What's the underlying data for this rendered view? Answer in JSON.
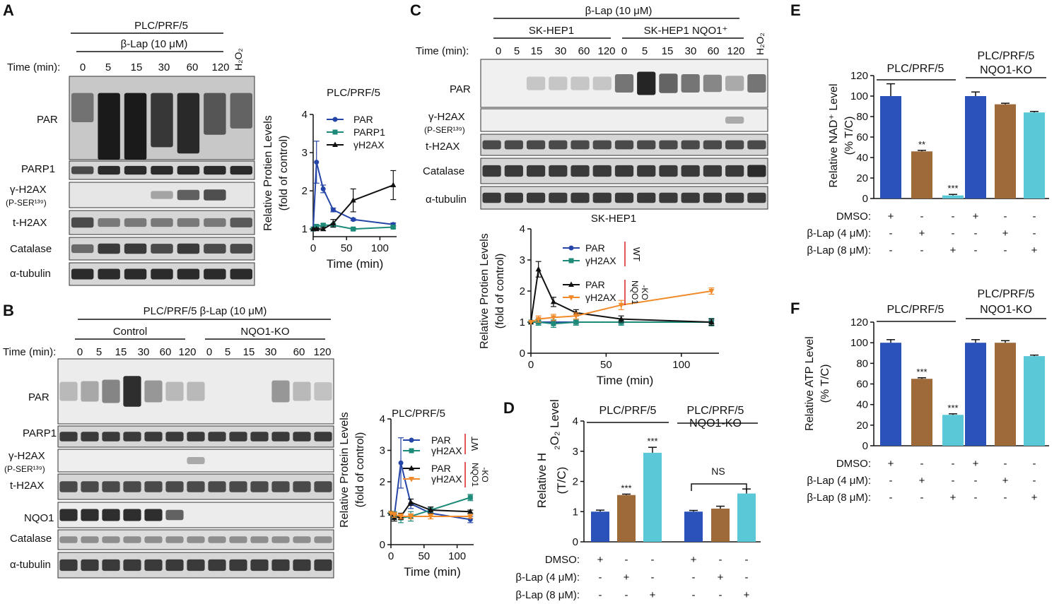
{
  "panels": {
    "A": {
      "letter": "A",
      "cell_line": "PLC/PRF/5",
      "treatment": "β-Lap (10 μM)",
      "h2o2": "H₂O₂",
      "time_label": "Time (min):",
      "times": [
        "0",
        "5",
        "15",
        "30",
        "60",
        "120"
      ],
      "blots": [
        "PAR",
        "PARP1",
        "γ-H2AX",
        "(P-SER¹³⁹)",
        "t-H2AX",
        "Catalase",
        "α-tubulin"
      ]
    },
    "B": {
      "letter": "B",
      "treatment": "PLC/PRF/5 β-Lap (10 μM)",
      "group_control": "Control",
      "group_ko": "NQO1-KO",
      "time_label": "Time (min):",
      "times": [
        "0",
        "5",
        "15",
        "30",
        "60",
        "120",
        "0",
        "5",
        "15",
        "30",
        "60",
        "120"
      ],
      "blots": [
        "PAR",
        "PARP1",
        "γ-H2AX",
        "(P-SER¹³⁹)",
        "t-H2AX",
        "NQO1",
        "Catalase",
        "α-tubulin"
      ]
    },
    "C": {
      "letter": "C",
      "treatment": "β-Lap (10 μM)",
      "group_wt": "SK-HEP1",
      "group_nqo1": "SK-HEP1 NQO1⁺",
      "h2o2": "H₂O₂",
      "time_label": "Time (min):",
      "times": [
        "0",
        "5",
        "15",
        "30",
        "60",
        "120",
        "0",
        "5",
        "15",
        "30",
        "60",
        "120"
      ],
      "blots": [
        "PAR",
        "γ-H2AX",
        "(P-SER¹³⁹)",
        "t-H2AX",
        "Catalase",
        "α-tubulin"
      ]
    },
    "D": {
      "letter": "D"
    },
    "E": {
      "letter": "E"
    },
    "F": {
      "letter": "F"
    }
  },
  "chart_data": [
    {
      "id": "A-line",
      "type": "line",
      "title": "PLC/PRF/5",
      "xlabel": "Time (min)",
      "ylabel": "Relative Protien Levels (fold of control)",
      "xlim": [
        0,
        125
      ],
      "ylim": [
        0.8,
        4
      ],
      "xticks": [
        "0",
        "50",
        "100"
      ],
      "yticks": [
        "1",
        "2",
        "3",
        "4"
      ],
      "legend": "top-right",
      "series": [
        {
          "name": "PAR",
          "color": "#2546a8",
          "marker": "circle",
          "x": [
            0,
            5,
            15,
            30,
            60,
            120
          ],
          "y": [
            1.0,
            2.75,
            2.05,
            1.5,
            1.25,
            1.12
          ],
          "err": [
            0,
            0.55,
            0.1,
            0.05,
            0.03,
            0.04
          ]
        },
        {
          "name": "PARP1",
          "color": "#1e8a7a",
          "marker": "square",
          "x": [
            0,
            5,
            15,
            30,
            60,
            120
          ],
          "y": [
            1.0,
            1.07,
            1.1,
            1.1,
            1.0,
            1.05
          ],
          "err": [
            0,
            0.04,
            0.04,
            0.03,
            0.03,
            0.03
          ]
        },
        {
          "name": "γH2AX",
          "color": "#111111",
          "marker": "triangle",
          "x": [
            0,
            5,
            15,
            30,
            60,
            120
          ],
          "y": [
            1.0,
            1.0,
            1.0,
            1.15,
            1.75,
            2.15
          ],
          "err": [
            0,
            0.03,
            0.04,
            0.1,
            0.3,
            0.38
          ]
        }
      ]
    },
    {
      "id": "B-line",
      "type": "line",
      "title": "PLC/PRF/5",
      "xlabel": "Time (min)",
      "ylabel": "Relative Protein Levels (fold of control)",
      "xlim": [
        0,
        125
      ],
      "ylim": [
        0,
        4
      ],
      "xticks": [
        "0",
        "50",
        "100"
      ],
      "yticks": [
        "0",
        "1",
        "2",
        "3",
        "4"
      ],
      "legend": "top-right",
      "groups": [
        {
          "label": "WT",
          "color": "#d62020"
        },
        {
          "label": "NQO1 -KO",
          "color": "#d62020"
        }
      ],
      "series": [
        {
          "name": "PAR",
          "group": "WT",
          "color": "#2546a8",
          "marker": "circle",
          "x": [
            0,
            5,
            15,
            30,
            60,
            120
          ],
          "y": [
            1.0,
            0.9,
            2.6,
            1.3,
            1.0,
            0.8
          ],
          "err": [
            0,
            0.1,
            0.8,
            0.15,
            0.1,
            0.1
          ]
        },
        {
          "name": "γH2AX",
          "group": "WT",
          "color": "#1e8a7a",
          "marker": "square",
          "x": [
            0,
            5,
            15,
            30,
            60,
            120
          ],
          "y": [
            1.0,
            0.95,
            0.85,
            0.9,
            1.1,
            1.5
          ],
          "err": [
            0,
            0.1,
            0.15,
            0.15,
            0.1,
            0.1
          ]
        },
        {
          "name": "PAR",
          "group": "NQO1 -KO",
          "color": "#111111",
          "marker": "triangle",
          "x": [
            0,
            5,
            15,
            30,
            60,
            120
          ],
          "y": [
            1.0,
            0.85,
            0.9,
            1.35,
            1.1,
            1.05
          ],
          "err": [
            0,
            0.1,
            0.1,
            0.1,
            0.1,
            0.05
          ]
        },
        {
          "name": "γH2AX",
          "group": "NQO1 -KO",
          "color": "#f08a2a",
          "marker": "triangle-down",
          "x": [
            0,
            5,
            15,
            30,
            60,
            120
          ],
          "y": [
            1.0,
            0.95,
            0.9,
            0.9,
            0.9,
            0.9
          ],
          "err": [
            0,
            0.08,
            0.08,
            0.08,
            0.08,
            0.06
          ]
        }
      ]
    },
    {
      "id": "C-line",
      "type": "line",
      "title": "SK-HEP1",
      "xlabel": "Time (min)",
      "ylabel": "Relative Protien Levels (fold of control)",
      "xlim": [
        0,
        125
      ],
      "ylim": [
        0,
        4
      ],
      "xticks": [
        "0",
        "50",
        "100"
      ],
      "yticks": [
        "0",
        "1",
        "2",
        "3",
        "4"
      ],
      "legend": "top-right",
      "groups": [
        {
          "label": "WT",
          "color": "#d62020"
        },
        {
          "label": "NQO1 -KO",
          "color": "#d62020"
        }
      ],
      "series": [
        {
          "name": "PAR",
          "group": "WT",
          "color": "#2546a8",
          "marker": "circle",
          "x": [
            0,
            5,
            15,
            30,
            60,
            120
          ],
          "y": [
            1.0,
            1.0,
            1.0,
            1.0,
            1.0,
            1.0
          ],
          "err": [
            0,
            0.05,
            0.05,
            0.05,
            0.05,
            0.05
          ]
        },
        {
          "name": "γH2AX",
          "group": "WT",
          "color": "#1e8a7a",
          "marker": "square",
          "x": [
            0,
            5,
            15,
            30,
            60,
            120
          ],
          "y": [
            1.0,
            1.0,
            0.95,
            1.0,
            1.0,
            1.0
          ],
          "err": [
            0,
            0.1,
            0.12,
            0.1,
            0.1,
            0.12
          ]
        },
        {
          "name": "PAR",
          "group": "NQO1 -KO",
          "color": "#111111",
          "marker": "triangle",
          "x": [
            0,
            5,
            15,
            30,
            60,
            120
          ],
          "y": [
            1.0,
            2.7,
            1.65,
            1.3,
            1.1,
            1.0
          ],
          "err": [
            0,
            0.25,
            0.15,
            0.1,
            0.1,
            0.1
          ]
        },
        {
          "name": "γH2AX",
          "group": "NQO1 -KO",
          "color": "#f08a2a",
          "marker": "triangle-down",
          "x": [
            0,
            5,
            15,
            30,
            60,
            120
          ],
          "y": [
            1.0,
            1.1,
            1.15,
            1.2,
            1.55,
            2.0
          ],
          "err": [
            0,
            0.1,
            0.1,
            0.1,
            0.15,
            0.1
          ]
        }
      ]
    },
    {
      "id": "D-bar",
      "type": "bar",
      "ylabel": "Relative H₂O₂ Level (T/C)",
      "ylim": [
        0,
        4
      ],
      "yticks": [
        "0",
        "1",
        "2",
        "3",
        "4"
      ],
      "group_labels": [
        "PLC/PRF/5",
        "PLC/PRF/5 NQO1-KO"
      ],
      "annotation": "NS",
      "bars": [
        {
          "value": 1.0,
          "err": 0.05,
          "color": "#2a52b8",
          "sig": ""
        },
        {
          "value": 1.55,
          "err": 0.03,
          "color": "#9e6a3a",
          "sig": "***"
        },
        {
          "value": 2.95,
          "err": 0.18,
          "color": "#5bc8d8",
          "sig": "***"
        },
        {
          "value": 1.0,
          "err": 0.04,
          "color": "#2a52b8",
          "sig": ""
        },
        {
          "value": 1.1,
          "err": 0.08,
          "color": "#9e6a3a",
          "sig": ""
        },
        {
          "value": 1.6,
          "err": 0.15,
          "color": "#5bc8d8",
          "sig": ""
        }
      ],
      "conditions": [
        {
          "label": "DMSO:",
          "marks": [
            "+",
            "-",
            "-",
            "+",
            "-",
            "-"
          ]
        },
        {
          "label": "β-Lap (4 μM):",
          "marks": [
            "-",
            "+",
            "-",
            "-",
            "+",
            "-"
          ]
        },
        {
          "label": "β-Lap (8 μM):",
          "marks": [
            "-",
            "-",
            "+",
            "-",
            "-",
            "+"
          ]
        }
      ]
    },
    {
      "id": "E-bar",
      "type": "bar",
      "ylabel": "Relative NAD⁺ Level (% T/C)",
      "ylim": [
        0,
        120
      ],
      "yticks": [
        "0",
        "20",
        "40",
        "60",
        "80",
        "100",
        "120"
      ],
      "group_labels": [
        "PLC/PRF/5",
        "PLC/PRF/5 NQO1-KO"
      ],
      "bars": [
        {
          "value": 100,
          "err": 12,
          "color": "#2a52b8",
          "sig": ""
        },
        {
          "value": 46,
          "err": 1,
          "color": "#9e6a3a",
          "sig": "**"
        },
        {
          "value": 3,
          "err": 1,
          "color": "#5bc8d8",
          "sig": "***"
        },
        {
          "value": 100,
          "err": 4,
          "color": "#2a52b8",
          "sig": ""
        },
        {
          "value": 92,
          "err": 1,
          "color": "#9e6a3a",
          "sig": ""
        },
        {
          "value": 84,
          "err": 1,
          "color": "#5bc8d8",
          "sig": ""
        }
      ],
      "conditions": [
        {
          "label": "DMSO:",
          "marks": [
            "+",
            "-",
            "-",
            "+",
            "-",
            "-"
          ]
        },
        {
          "label": "β-Lap (4 μM):",
          "marks": [
            "-",
            "+",
            "-",
            "-",
            "+",
            "-"
          ]
        },
        {
          "label": "β-Lap (8 μM):",
          "marks": [
            "-",
            "-",
            "+",
            "-",
            "-",
            "+"
          ]
        }
      ]
    },
    {
      "id": "F-bar",
      "type": "bar",
      "ylabel": "Relative ATP Level (% T/C)",
      "ylim": [
        0,
        120
      ],
      "yticks": [
        "0",
        "20",
        "40",
        "60",
        "80",
        "100",
        "120"
      ],
      "group_labels": [
        "PLC/PRF/5",
        "PLC/PRF/5 NQO1-KO"
      ],
      "bars": [
        {
          "value": 100,
          "err": 3,
          "color": "#2a52b8",
          "sig": ""
        },
        {
          "value": 65,
          "err": 1,
          "color": "#9e6a3a",
          "sig": "***"
        },
        {
          "value": 30,
          "err": 1,
          "color": "#5bc8d8",
          "sig": "***"
        },
        {
          "value": 100,
          "err": 3,
          "color": "#2a52b8",
          "sig": ""
        },
        {
          "value": 100,
          "err": 2,
          "color": "#9e6a3a",
          "sig": ""
        },
        {
          "value": 87,
          "err": 1,
          "color": "#5bc8d8",
          "sig": ""
        }
      ],
      "conditions": [
        {
          "label": "DMSO:",
          "marks": [
            "+",
            "-",
            "-",
            "+",
            "-",
            "-"
          ]
        },
        {
          "label": "β-Lap (4 μM):",
          "marks": [
            "-",
            "+",
            "-",
            "-",
            "+",
            "-"
          ]
        },
        {
          "label": "β-Lap (8 μM):",
          "marks": [
            "-",
            "-",
            "+",
            "-",
            "-",
            "+"
          ]
        }
      ]
    }
  ]
}
